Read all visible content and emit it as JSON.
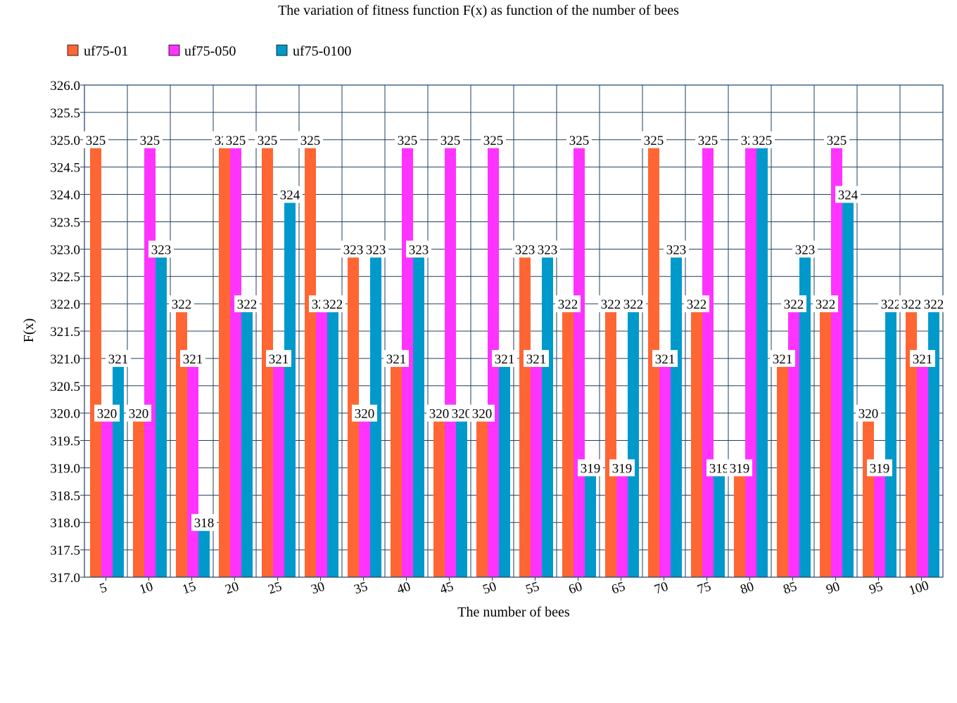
{
  "chart_data": {
    "type": "bar",
    "title": "The variation of fitness function F(x) as function of the number of bees",
    "xlabel": "The number of bees",
    "ylabel": "F(x)",
    "ylim": [
      317.0,
      326.0
    ],
    "y_ticks": [
      "317.0",
      "317.5",
      "318.0",
      "318.5",
      "319.0",
      "319.5",
      "320.0",
      "320.5",
      "321.0",
      "321.5",
      "322.0",
      "322.5",
      "323.0",
      "323.5",
      "324.0",
      "324.5",
      "325.0",
      "325.5",
      "326.0"
    ],
    "grid": true,
    "legend_position": "top-left",
    "categories": [
      "5",
      "10",
      "15",
      "20",
      "25",
      "30",
      "35",
      "40",
      "45",
      "50",
      "55",
      "60",
      "65",
      "70",
      "75",
      "80",
      "85",
      "90",
      "95",
      "100"
    ],
    "series": [
      {
        "name": "uf75-01",
        "color": "#ff6633",
        "values": [
          325,
          320,
          322,
          325,
          325,
          325,
          323,
          321,
          320,
          320,
          323,
          322,
          322,
          325,
          322,
          319,
          321,
          322,
          320,
          322
        ]
      },
      {
        "name": "uf75-050",
        "color": "#ff33ff",
        "values": [
          320,
          325,
          321,
          325,
          321,
          322,
          320,
          325,
          325,
          325,
          321,
          325,
          319,
          321,
          325,
          325,
          322,
          325,
          319,
          321
        ]
      },
      {
        "name": "uf75-0100",
        "color": "#0099cc",
        "values": [
          321,
          323,
          318,
          322,
          324,
          322,
          323,
          323,
          320,
          321,
          323,
          319,
          322,
          323,
          319,
          325,
          323,
          324,
          322,
          322
        ]
      }
    ]
  }
}
